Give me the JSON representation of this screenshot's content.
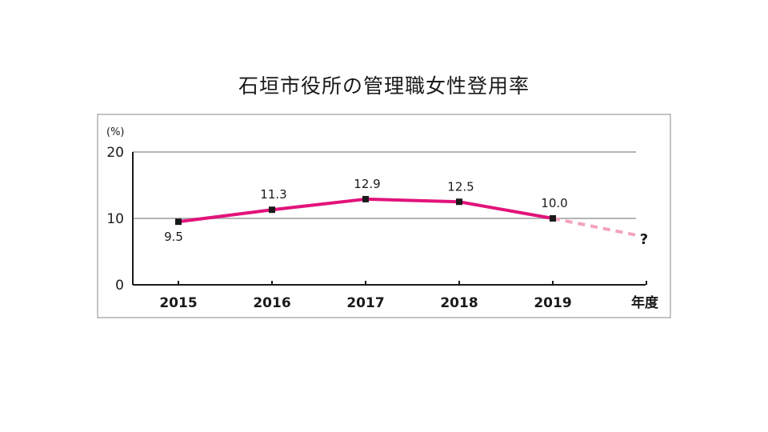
{
  "chart_data": {
    "type": "line",
    "title": "石垣市役所の管理職女性登用率",
    "ylabel": "(%)",
    "xlabel": "年度",
    "categories": [
      "2015",
      "2016",
      "2017",
      "2018",
      "2019"
    ],
    "series": [
      {
        "values": [
          9.5,
          11.3,
          12.9,
          12.5,
          10.0
        ],
        "color": "#e2137a"
      }
    ],
    "projection": {
      "value": 7.5,
      "label": "?",
      "color": "#f2a3bd"
    },
    "y_ticks": [
      "0",
      "10",
      "20"
    ],
    "ylim": [
      0,
      20
    ],
    "grid": true
  }
}
